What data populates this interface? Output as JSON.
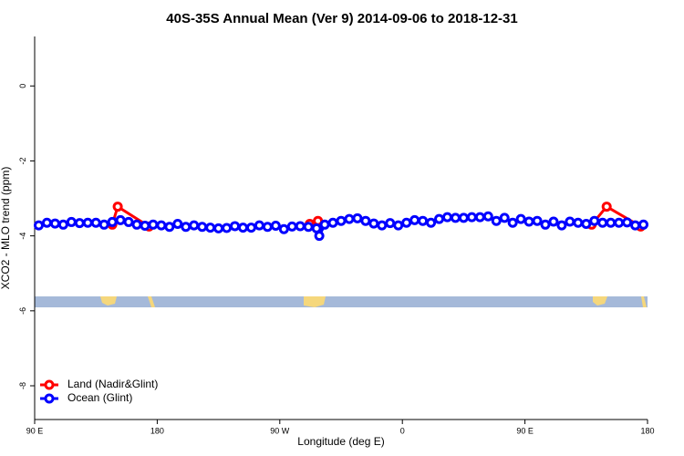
{
  "chart_data": {
    "type": "line",
    "title": "40S-35S Annual Mean (Ver 9)   2014-09-06 to 2018-12-31",
    "x_label": "Longitude (deg E)",
    "y_label": "XCO2 - MLO trend (ppm)",
    "xlim": [
      90,
      540
    ],
    "ylim": [
      -8.9,
      1.32
    ],
    "xticks": [
      {
        "value": 90,
        "label": "90 E"
      },
      180,
      {
        "value": 270,
        "label": "90 W"
      },
      {
        "value": 360,
        "label": "0"
      },
      {
        "value": 450,
        "label": "90 E"
      },
      {
        "value": 540,
        "label": "180"
      }
    ],
    "yticks": [
      0,
      -2,
      -4,
      -6,
      -8
    ],
    "legend": "bottom-left",
    "series": [
      {
        "name": "Land (Nadir&Glint)",
        "color": "#ff0000",
        "x": [
          147,
          151,
          174,
          233,
          292,
          298,
          398,
          499,
          510,
          535
        ],
        "values": [
          -3.7,
          -3.22,
          -3.75,
          null,
          -3.68,
          -3.6,
          null,
          -3.7,
          -3.22,
          -3.75
        ]
      },
      {
        "name": "Ocean (Glint)",
        "color": "#0000ff",
        "x": [
          93,
          99,
          105,
          111,
          117,
          123,
          129,
          135,
          141,
          147,
          153,
          159,
          165,
          171,
          177,
          183,
          189,
          195,
          201,
          207,
          213,
          219,
          225,
          231,
          237,
          243,
          249,
          255,
          261,
          267,
          273,
          279,
          285,
          291,
          297,
          299,
          303,
          309,
          315,
          321,
          327,
          333,
          339,
          345,
          351,
          357,
          363,
          369,
          375,
          381,
          387,
          393,
          399,
          405,
          411,
          417,
          423,
          429,
          435,
          441,
          447,
          453,
          459,
          465,
          471,
          477,
          483,
          489,
          495,
          501,
          507,
          513,
          519,
          525,
          531,
          537
        ],
        "values": [
          -3.72,
          -3.65,
          -3.67,
          -3.7,
          -3.63,
          -3.66,
          -3.65,
          -3.65,
          -3.7,
          -3.63,
          -3.58,
          -3.63,
          -3.7,
          -3.73,
          -3.7,
          -3.72,
          -3.76,
          -3.68,
          -3.76,
          -3.72,
          -3.76,
          -3.78,
          -3.8,
          -3.79,
          -3.74,
          -3.78,
          -3.78,
          -3.72,
          -3.76,
          -3.73,
          -3.82,
          -3.75,
          -3.74,
          -3.76,
          -3.8,
          -4.0,
          -3.7,
          -3.65,
          -3.6,
          -3.55,
          -3.53,
          -3.6,
          -3.67,
          -3.72,
          -3.66,
          -3.72,
          -3.65,
          -3.58,
          -3.6,
          -3.65,
          -3.55,
          -3.5,
          -3.52,
          -3.52,
          -3.5,
          -3.5,
          -3.48,
          -3.6,
          -3.52,
          -3.65,
          -3.55,
          -3.62,
          -3.6,
          -3.7,
          -3.62,
          -3.72,
          -3.62,
          -3.65,
          -3.68,
          -3.6,
          -3.65,
          -3.65,
          -3.65,
          -3.64,
          -3.72,
          -3.7
        ]
      }
    ]
  }
}
